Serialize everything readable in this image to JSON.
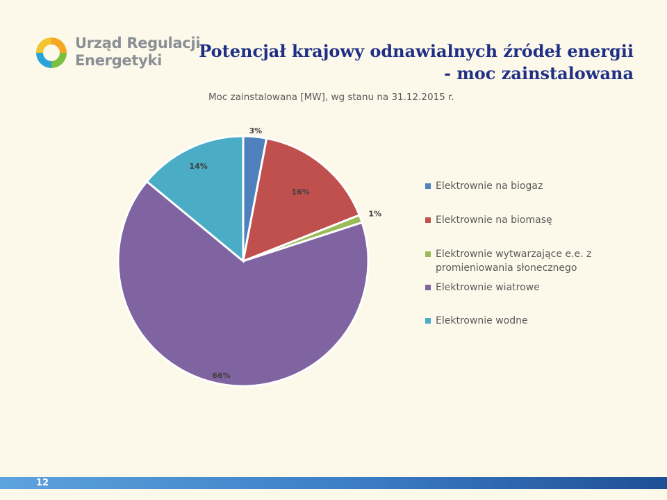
{
  "logo": {
    "line1": "Urząd Regulacji",
    "line2": "Energetyki"
  },
  "title": {
    "line1": "Potencjał krajowy odnawialnych źródeł energii",
    "line2": "- moc zainstalowana"
  },
  "chart_data": {
    "type": "pie",
    "title": "Moc zainstalowana [MW], wg stanu na 31.12.2015 r.",
    "legend_position": "right",
    "slices": [
      {
        "label": "Elektrownie na biogaz",
        "value": 3,
        "display": "3%",
        "color": "#4f81bd"
      },
      {
        "label": "Elektrownie na biomasę",
        "value": 16,
        "display": "16%",
        "color": "#c0504d"
      },
      {
        "label": "Elektrownie wytwarzające e.e. z promieniowania słonecznego",
        "value": 1,
        "display": "1%",
        "color": "#9bbb59"
      },
      {
        "label": "Elektrownie wiatrowe",
        "value": 66,
        "display": "66%",
        "color": "#8064a2"
      },
      {
        "label": "Elektrownie wodne",
        "value": 14,
        "display": "14%",
        "color": "#4bacc6"
      }
    ]
  },
  "footer": {
    "page_number": "12"
  }
}
